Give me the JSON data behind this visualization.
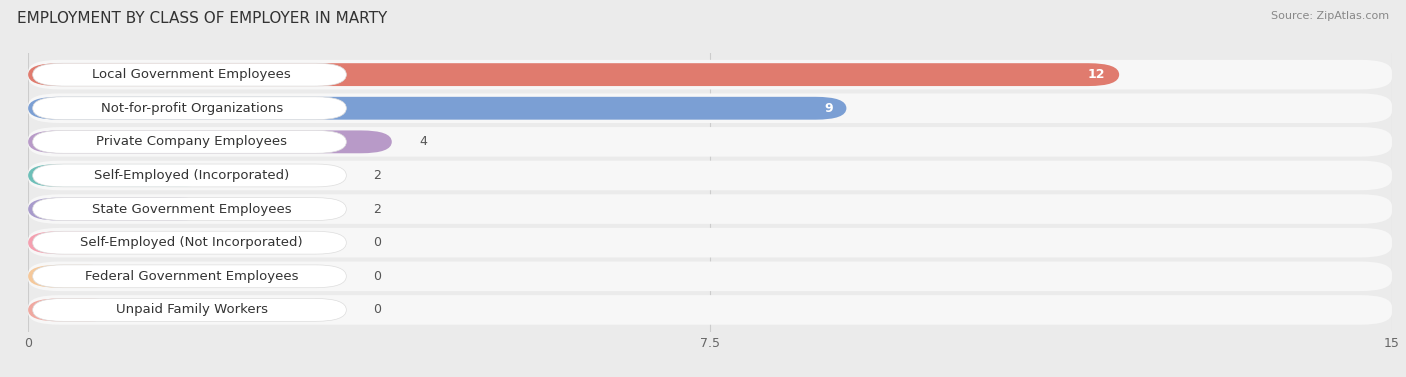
{
  "title": "EMPLOYMENT BY CLASS OF EMPLOYER IN MARTY",
  "source": "Source: ZipAtlas.com",
  "categories": [
    "Local Government Employees",
    "Not-for-profit Organizations",
    "Private Company Employees",
    "Self-Employed (Incorporated)",
    "State Government Employees",
    "Self-Employed (Not Incorporated)",
    "Federal Government Employees",
    "Unpaid Family Workers"
  ],
  "values": [
    12,
    9,
    4,
    2,
    2,
    0,
    0,
    0
  ],
  "bar_colors": [
    "#e07b6e",
    "#7b9fd4",
    "#b89ac8",
    "#6dbfb8",
    "#a89bcc",
    "#f4a0b0",
    "#f5c89a",
    "#f0a8a0"
  ],
  "xlim": [
    0,
    15
  ],
  "xticks": [
    0,
    7.5,
    15
  ],
  "background_color": "#ebebeb",
  "row_bg_color": "#f7f7f7",
  "label_bg_color": "#ffffff",
  "title_fontsize": 11,
  "label_fontsize": 9.5,
  "value_fontsize": 9
}
